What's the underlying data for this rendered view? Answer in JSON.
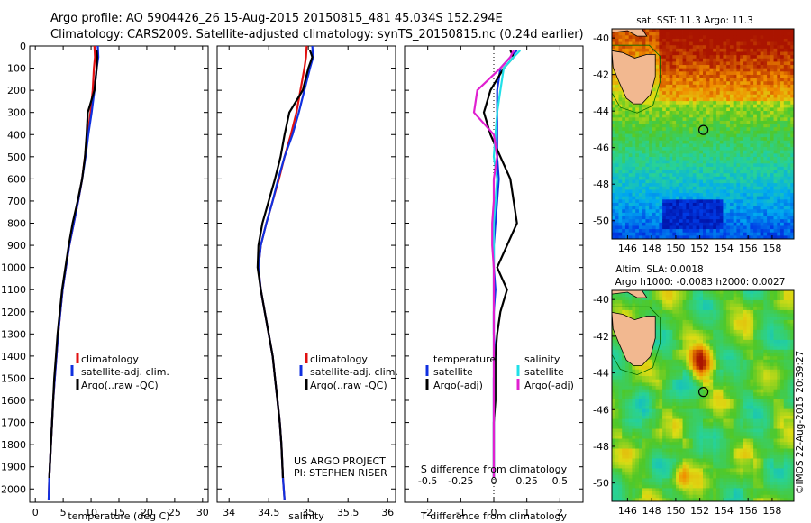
{
  "header": {
    "line1": "Argo profile: AO 5904426_26 15-Aug-2015 20150815_481 45.034S 152.294E",
    "line2": "Climatology: CARS2009. Satellite-adjusted climatology: synTS_20150815.nc (0.24d earlier)"
  },
  "colors": {
    "climatology": "#e01010",
    "satellite": "#1030e0",
    "argo": "#000000",
    "sal_satellite": "#20e0e8",
    "sal_argo": "#e020d0"
  },
  "chart_data": [
    {
      "type": "line",
      "name": "temperature-profile",
      "xlabel": "temperature (deg C)",
      "ylabel": "",
      "xlim": [
        -1,
        31
      ],
      "ylim": [
        2060,
        0
      ],
      "xticks": [
        0,
        5,
        10,
        15,
        20,
        25,
        30
      ],
      "yticks": [
        0,
        100,
        200,
        300,
        400,
        500,
        600,
        700,
        800,
        900,
        1000,
        1100,
        1200,
        1300,
        1400,
        1500,
        1600,
        1700,
        1800,
        1900,
        2000
      ],
      "legend": [
        "climatology",
        "satellite-adj. clim.",
        "Argo(..raw -QC)"
      ],
      "series": [
        {
          "name": "climatology",
          "color": "#e01010",
          "x": [
            10.6,
            10.7,
            10.5,
            10.3,
            9.9,
            9.4,
            8.9,
            8.4,
            7.7,
            6.9,
            6.1,
            5.5,
            4.9,
            4.5,
            4.1,
            3.8,
            3.5,
            3.2,
            3.0,
            2.8,
            2.5,
            2.4
          ],
          "y": [
            0,
            50,
            100,
            200,
            300,
            400,
            500,
            600,
            700,
            800,
            900,
            1000,
            1100,
            1200,
            1300,
            1400,
            1500,
            1600,
            1700,
            1800,
            1950,
            2050
          ]
        },
        {
          "name": "satellite-adj. clim.",
          "color": "#1030e0",
          "x": [
            11.2,
            11.3,
            11.0,
            10.6,
            10.1,
            9.5,
            9.0,
            8.4,
            7.7,
            6.9,
            6.1,
            5.5,
            4.9,
            4.5,
            4.1,
            3.8,
            3.5,
            3.2,
            3.0,
            2.8,
            2.5,
            2.4
          ],
          "y": [
            0,
            50,
            100,
            200,
            300,
            400,
            500,
            600,
            700,
            800,
            900,
            1000,
            1100,
            1200,
            1300,
            1400,
            1500,
            1600,
            1700,
            1800,
            1950,
            2050
          ]
        },
        {
          "name": "Argo(..raw -QC)",
          "color": "#000000",
          "x": [
            11.0,
            11.1,
            11.0,
            10.6,
            9.4,
            9.2,
            8.9,
            8.4,
            7.6,
            6.7,
            6.0,
            5.4,
            4.8,
            4.4,
            4.0,
            3.7,
            3.4,
            3.2,
            3.0,
            2.8,
            2.5
          ],
          "y": [
            20,
            50,
            100,
            200,
            300,
            400,
            500,
            600,
            700,
            800,
            900,
            1000,
            1100,
            1200,
            1300,
            1400,
            1500,
            1600,
            1700,
            1800,
            1950
          ]
        }
      ]
    },
    {
      "type": "line",
      "name": "salinity-profile",
      "xlabel": "salinity",
      "ylabel": "",
      "xlim": [
        33.85,
        36.1
      ],
      "ylim": [
        2060,
        0
      ],
      "xticks": [
        34,
        34.5,
        35,
        35.5,
        36
      ],
      "legend": [
        "climatology",
        "satellite-adj. clim.",
        "Argo(..raw -QC)"
      ],
      "series": [
        {
          "name": "climatology",
          "color": "#e01010",
          "x": [
            34.98,
            34.97,
            34.95,
            34.9,
            34.85,
            34.78,
            34.7,
            34.63,
            34.55,
            34.47,
            34.4,
            34.37,
            34.4,
            34.45,
            34.5,
            34.55,
            34.58,
            34.61,
            34.64,
            34.66,
            34.68,
            34.7
          ],
          "y": [
            0,
            50,
            100,
            200,
            300,
            400,
            500,
            600,
            700,
            800,
            900,
            1000,
            1100,
            1200,
            1300,
            1400,
            1500,
            1600,
            1700,
            1800,
            1950,
            2050
          ]
        },
        {
          "name": "satellite-adj. clim.",
          "color": "#1030e0",
          "x": [
            35.05,
            35.06,
            35.02,
            34.95,
            34.88,
            34.8,
            34.7,
            34.62,
            34.55,
            34.47,
            34.4,
            34.37,
            34.4,
            34.45,
            34.5,
            34.55,
            34.58,
            34.61,
            34.64,
            34.66,
            34.68,
            34.7
          ],
          "y": [
            0,
            50,
            100,
            200,
            300,
            400,
            500,
            600,
            700,
            800,
            900,
            1000,
            1100,
            1200,
            1300,
            1400,
            1500,
            1600,
            1700,
            1800,
            1950,
            2050
          ]
        },
        {
          "name": "Argo(..raw -QC)",
          "color": "#000000",
          "x": [
            35.02,
            35.05,
            35.0,
            34.93,
            34.76,
            34.7,
            34.65,
            34.58,
            34.5,
            34.42,
            34.37,
            34.36,
            34.4,
            34.45,
            34.5,
            34.55,
            34.58,
            34.61,
            34.64,
            34.66,
            34.68
          ],
          "y": [
            20,
            50,
            100,
            200,
            300,
            400,
            500,
            600,
            700,
            800,
            900,
            1000,
            1100,
            1200,
            1300,
            1400,
            1500,
            1600,
            1700,
            1800,
            1950
          ]
        }
      ],
      "annotations": [
        "US ARGO PROJECT",
        "PI: STEPHEN RISER"
      ]
    },
    {
      "type": "line",
      "name": "difference-profile",
      "xlabel": "T difference from climatology",
      "xlabel_top": "S difference from climatology",
      "xlim": [
        -2.7,
        2.7
      ],
      "ylim": [
        2060,
        0
      ],
      "xticks": [
        -2,
        -1,
        0,
        1,
        2
      ],
      "sticks": [
        "-0.5",
        "-0.25",
        "0",
        "0.25",
        "0.5"
      ],
      "legend": {
        "temperature_header": "temperature",
        "salinity_header": "salinity",
        "temperature": [
          "satellite",
          "Argo(-adj)"
        ],
        "salinity": [
          "satellite",
          "Argo(-adj)"
        ]
      },
      "series": [
        {
          "name": "temperature satellite",
          "color": "#1030e0",
          "x": [
            0.7,
            0.5,
            0.2,
            0.1,
            0.1,
            0.1,
            0.1,
            0.15,
            0.1,
            0.05,
            0.0,
            0.0,
            0.05,
            0.0,
            0.0,
            0.05,
            0.0,
            0.0,
            0.0,
            0.0,
            0.0
          ],
          "y": [
            20,
            50,
            100,
            200,
            300,
            400,
            500,
            600,
            700,
            800,
            900,
            1000,
            1100,
            1200,
            1300,
            1400,
            1500,
            1600,
            1700,
            1800,
            1950
          ]
        },
        {
          "name": "temperature Argo(-adj)",
          "color": "#000000",
          "x": [
            0.5,
            0.6,
            0.3,
            -0.1,
            -0.3,
            -0.1,
            0.2,
            0.5,
            0.6,
            0.7,
            0.4,
            0.1,
            0.4,
            0.2,
            0.1,
            0.05,
            0.05,
            0.05,
            0.0,
            0.0,
            0.0
          ],
          "y": [
            20,
            50,
            100,
            200,
            300,
            400,
            500,
            600,
            700,
            800,
            900,
            1000,
            1100,
            1200,
            1300,
            1400,
            1500,
            1600,
            1700,
            1800,
            1950
          ]
        },
        {
          "name": "salinity satellite",
          "color": "#20e0e8",
          "x": [
            0.8,
            0.6,
            0.3,
            0.2,
            0.1,
            0.05,
            0.0,
            0.1,
            0.05,
            0.0,
            0.0,
            0.0,
            0.0,
            0.0,
            0.0,
            0.0,
            0.0,
            0.0,
            0.0,
            0.0,
            0.0
          ],
          "y": [
            20,
            50,
            100,
            200,
            300,
            400,
            500,
            600,
            700,
            800,
            900,
            1000,
            1100,
            1200,
            1300,
            1400,
            1500,
            1600,
            1700,
            1800,
            1950
          ]
        },
        {
          "name": "salinity Argo(-adj)",
          "color": "#e020d0",
          "x": [
            0.6,
            0.5,
            0.2,
            -0.5,
            -0.6,
            0.0,
            0.1,
            0.0,
            0.0,
            -0.05,
            -0.05,
            0.0,
            0.0,
            0.0,
            0.0,
            0.0,
            0.0,
            0.0,
            0.0,
            0.0,
            0.0
          ],
          "y": [
            20,
            50,
            100,
            200,
            300,
            400,
            500,
            600,
            700,
            800,
            900,
            1000,
            1100,
            1200,
            1300,
            1400,
            1500,
            1600,
            1700,
            1800,
            1950
          ]
        }
      ]
    },
    {
      "type": "heatmap",
      "name": "sst-map",
      "title": "sat. SST: 11.3 Argo: 11.3",
      "xticks": [
        146,
        148,
        150,
        152,
        154,
        156,
        158
      ],
      "yticks": [
        -40,
        -42,
        -44,
        -46,
        -48,
        -50
      ],
      "xlim": [
        144.7,
        159.8
      ],
      "ylim": [
        -51,
        -39.5
      ],
      "argo_position": {
        "lon": 152.294,
        "lat": -45.034
      }
    },
    {
      "type": "heatmap",
      "name": "sla-map",
      "title_line1": "Altim. SLA: 0.0018",
      "title_line2": "Argo h1000: -0.0083 h2000: 0.0027",
      "xticks": [
        146,
        148,
        150,
        152,
        154,
        156,
        158
      ],
      "yticks": [
        -40,
        -42,
        -44,
        -46,
        -48,
        -50
      ],
      "xlim": [
        144.7,
        159.8
      ],
      "ylim": [
        -51,
        -39.5
      ],
      "argo_position": {
        "lon": 152.294,
        "lat": -45.034
      }
    }
  ],
  "credit": "©IMOS 22-Aug-2015 20:39:27"
}
